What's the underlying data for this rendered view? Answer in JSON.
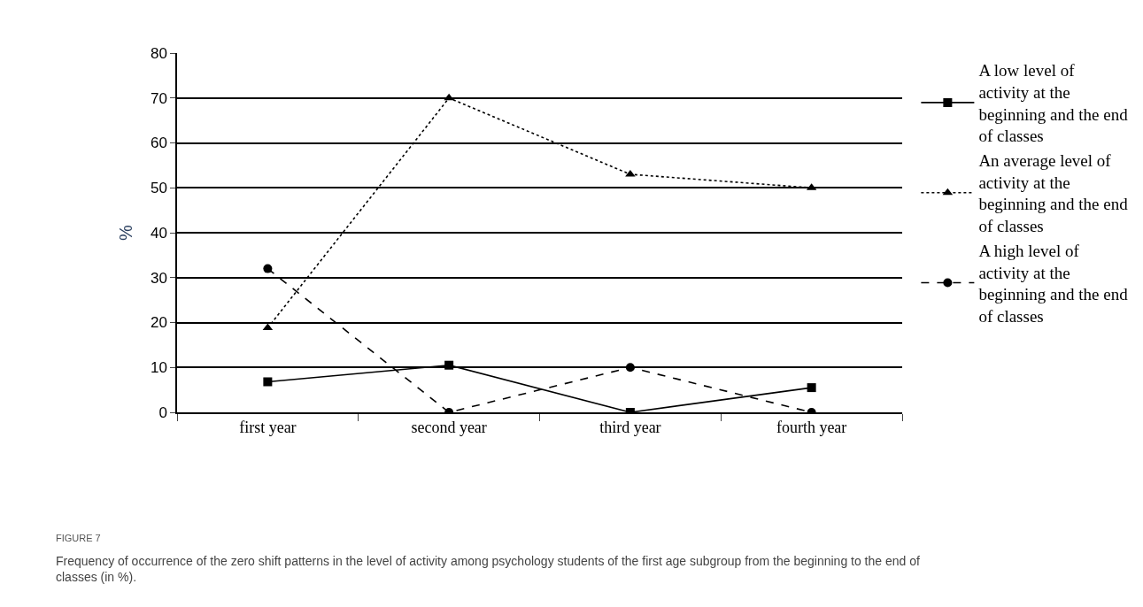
{
  "chart_data": {
    "type": "line",
    "ylabel": "%",
    "categories": [
      "first year",
      "second year",
      "third year",
      "fourth year"
    ],
    "series": [
      {
        "name": "A low level of activity at the beginning and the end of classes",
        "color": "#000000",
        "values": [
          6.8,
          10.5,
          0,
          5.5
        ],
        "marker": "square",
        "line_style": "solid"
      },
      {
        "name": "An average level of activity at the beginning and the end of classes",
        "color": "#000000",
        "values": [
          18.8,
          70,
          53,
          50
        ],
        "marker": "triangle",
        "line_style": "dotted"
      },
      {
        "name": "A high level of activity at the beginning and the end of classes",
        "color": "#000000",
        "values": [
          32,
          0,
          10,
          0
        ],
        "marker": "circle",
        "line_style": "dashed"
      }
    ],
    "ylim": [
      0,
      80
    ],
    "yticks": [
      0,
      10,
      20,
      30,
      40,
      50,
      60,
      70,
      80
    ],
    "grid": "y",
    "legend": "right",
    "annotations": [
      "FIGURE 7",
      "Frequency of occurrence of the zero shift patterns in the level of activity among psychology students of the first age subgroup from the beginning to the end of classes (in %)."
    ]
  }
}
